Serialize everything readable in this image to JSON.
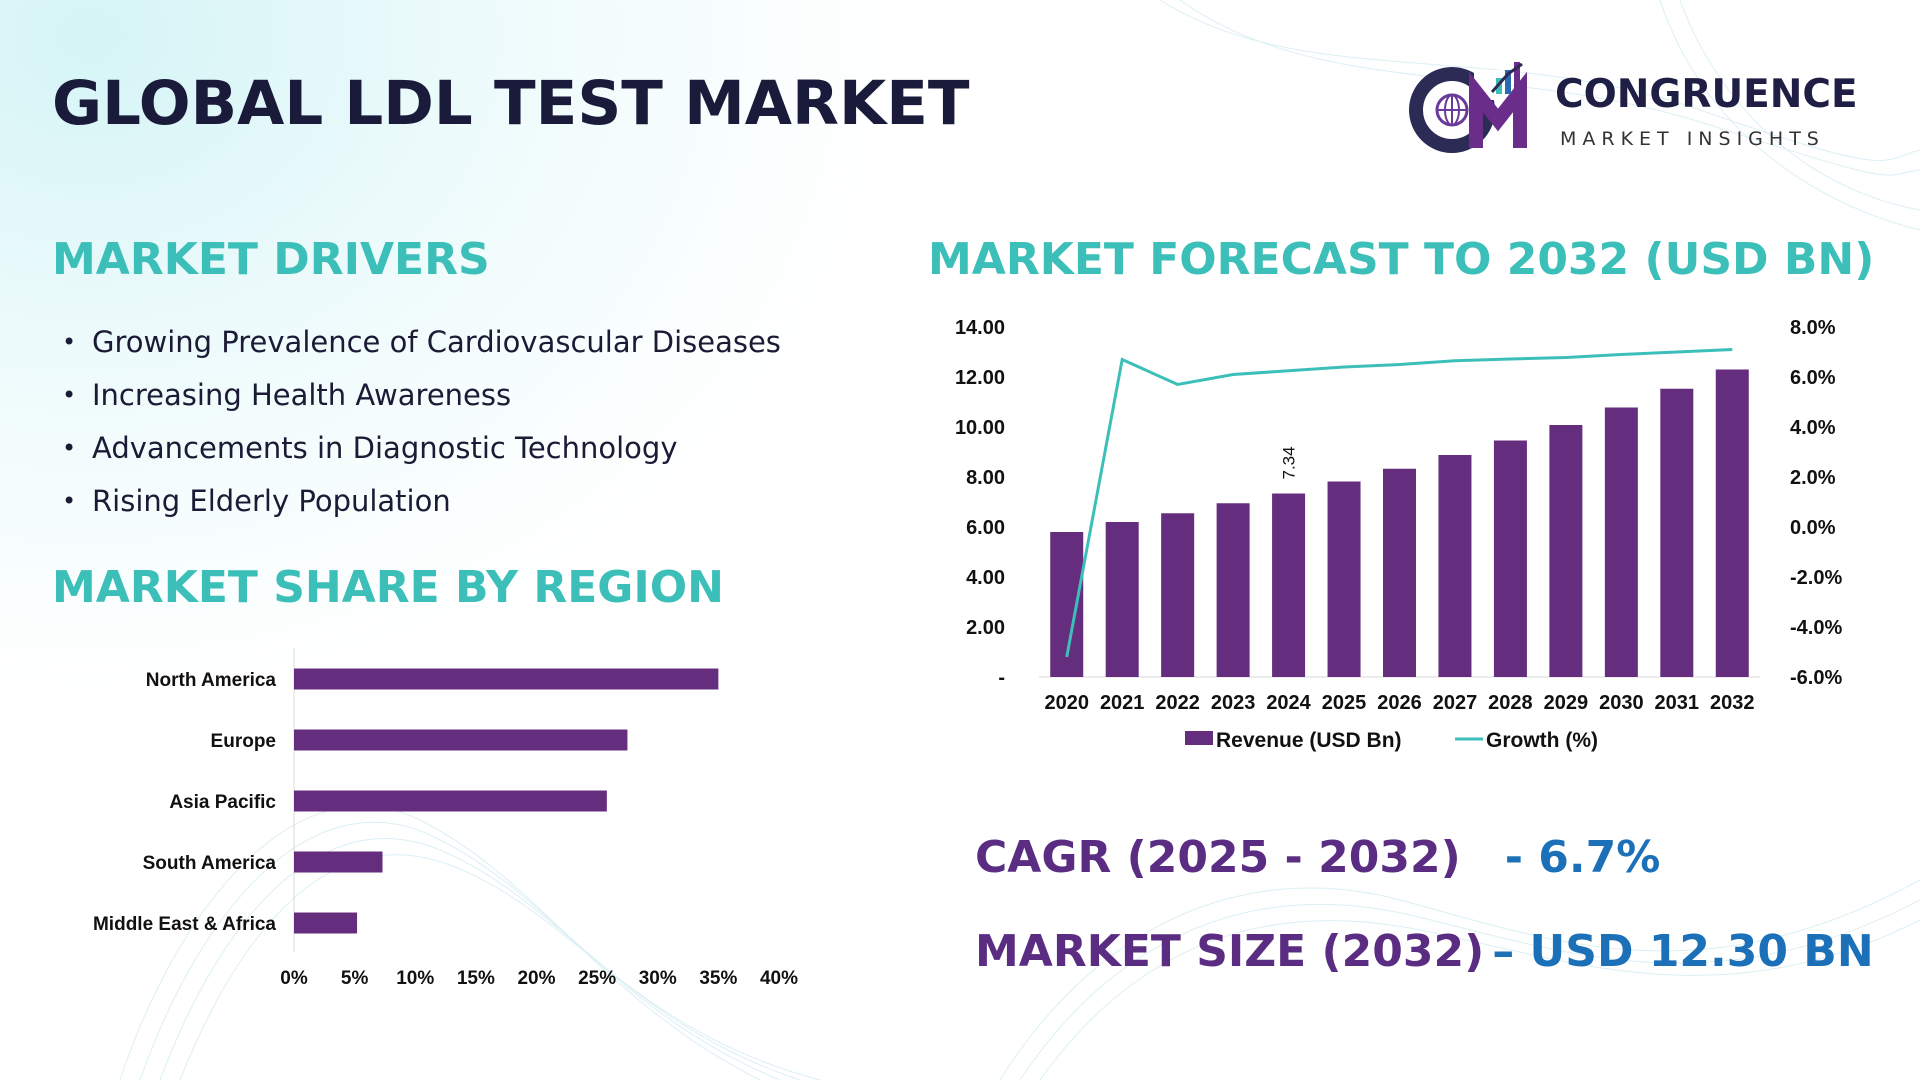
{
  "title": "GLOBAL LDL TEST MARKET",
  "logo": {
    "initials": "CM",
    "name": "CONGRUENCE",
    "subtitle": "MARKET INSIGHTS"
  },
  "drivers": {
    "heading": "MARKET DRIVERS",
    "items": [
      "Growing Prevalence of Cardiovascular Diseases",
      "Increasing Health Awareness",
      "Advancements in Diagnostic Technology",
      "Rising Elderly Population"
    ]
  },
  "region": {
    "heading": "MARKET SHARE BY REGION"
  },
  "forecast": {
    "heading": "MARKET FORECAST TO 2032 (USD BN)"
  },
  "kpis": {
    "cagr_label": "CAGR (2025 - 2032)",
    "cagr_value": "- 6.7%",
    "size_label": "MARKET SIZE (2032)",
    "size_value": "– USD 12.30 BN"
  },
  "colors": {
    "heading": "#3cbfb8",
    "bar": "#652d7e",
    "line": "#3cbfb8",
    "kpi_label": "#5a2d82",
    "kpi_value": "#1b70b8",
    "title": "#1a1a3a"
  },
  "chart_data": [
    {
      "type": "bar",
      "orientation": "horizontal",
      "categories": [
        "North America",
        "Europe",
        "Asia Pacific",
        "South America",
        "Middle East & Africa"
      ],
      "values": [
        35,
        27.5,
        25.8,
        7.3,
        5.2
      ],
      "xlim": [
        0,
        40
      ],
      "xticks": [
        "0%",
        "5%",
        "10%",
        "15%",
        "20%",
        "25%",
        "30%",
        "35%",
        "40%"
      ],
      "grid": false
    },
    {
      "type": "bar",
      "categories": [
        "2020",
        "2021",
        "2022",
        "2023",
        "2024",
        "2025",
        "2026",
        "2027",
        "2028",
        "2029",
        "2030",
        "2031",
        "2032"
      ],
      "series": [
        {
          "name": "Revenue (USD Bn)",
          "type": "bar",
          "axis": "left",
          "values": [
            5.8,
            6.2,
            6.55,
            6.95,
            7.34,
            7.82,
            8.33,
            8.88,
            9.46,
            10.08,
            10.78,
            11.53,
            12.3
          ]
        },
        {
          "name": "Growth (%)",
          "type": "line",
          "axis": "right",
          "values": [
            -5.2,
            6.7,
            5.7,
            6.1,
            6.25,
            6.4,
            6.5,
            6.65,
            6.72,
            6.78,
            6.9,
            7.0,
            7.1
          ]
        }
      ],
      "data_labels": [
        {
          "index": 4,
          "text": "7.34"
        }
      ],
      "ylim_left": [
        0,
        14
      ],
      "yticks_left": [
        "-",
        "2.00",
        "4.00",
        "6.00",
        "8.00",
        "10.00",
        "12.00",
        "14.00"
      ],
      "ylim_right": [
        -6,
        8
      ],
      "yticks_right": [
        "-6.0%",
        "-4.0%",
        "-2.0%",
        "0.0%",
        "2.0%",
        "4.0%",
        "6.0%",
        "8.0%"
      ],
      "legend": "bottom",
      "grid": false
    }
  ]
}
